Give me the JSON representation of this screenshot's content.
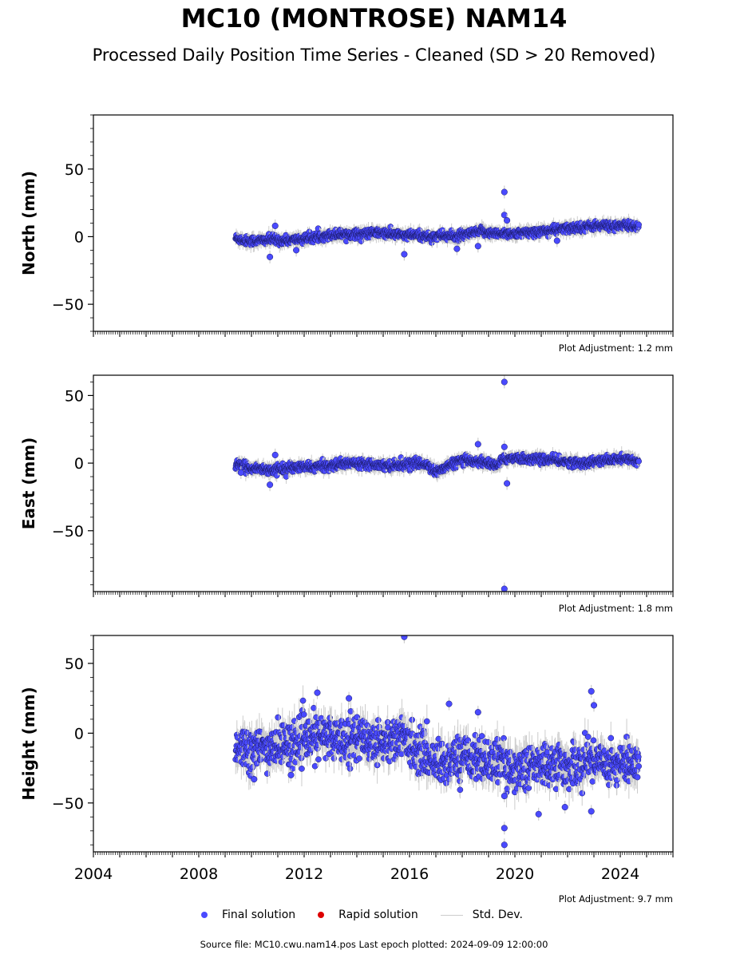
{
  "title": "MC10 (MONTROSE) NAM14",
  "subtitle": "Processed Daily Position Time Series - Cleaned (SD > 20 Removed)",
  "legend": {
    "final": "Final solution",
    "rapid": "Rapid solution",
    "stddev": "Std. Dev."
  },
  "source_text": "Source file: MC10.cwu.nam14.pos  Last epoch plotted: 2024-09-09 12:00:00",
  "colors": {
    "final": "#4a4aff",
    "rapid": "#dd0000",
    "stddev": "#cccccc",
    "edge": "#1a1a66"
  },
  "chart_data": [
    {
      "type": "scatter",
      "ylabel": "North (mm)",
      "adjustment": "Plot Adjustment: 1.2 mm",
      "xlim": [
        2004,
        2026
      ],
      "ylim": [
        -70,
        90
      ],
      "yticks": [
        -50,
        0,
        50
      ],
      "xticks": [
        2004,
        2008,
        2012,
        2016,
        2020,
        2024
      ],
      "series": [
        {
          "x": [
            2009.4,
            2009.8,
            2010.3,
            2010.8,
            2011.3,
            2011.8,
            2012.3,
            2012.8,
            2013.3,
            2013.8,
            2014.3,
            2014.8,
            2015.3,
            2015.8,
            2016.3,
            2016.8,
            2017.3,
            2017.8,
            2018.3,
            2018.8,
            2019.3,
            2019.6,
            2020.0,
            2020.5,
            2021.0,
            2021.5,
            2022.0,
            2022.5,
            2023.0,
            2023.5,
            2024.0,
            2024.5,
            2024.7
          ],
          "y": [
            -1,
            -3,
            -3,
            -2,
            -3,
            -2,
            -1,
            1,
            2,
            2,
            2,
            3,
            2,
            1,
            1,
            0,
            1,
            0,
            2,
            4,
            2,
            3,
            2,
            3,
            4,
            5,
            6,
            7,
            8,
            8,
            8,
            8,
            7
          ]
        }
      ],
      "outliers": {
        "x": [
          2010.7,
          2010.9,
          2011.7,
          2015.8,
          2017.8,
          2018.6,
          2019.6,
          2019.6,
          2019.7,
          2021.6
        ],
        "y": [
          -15,
          8,
          -10,
          -13,
          -9,
          -7,
          33,
          16,
          12,
          -3
        ]
      }
    },
    {
      "type": "scatter",
      "ylabel": "East (mm)",
      "adjustment": "Plot Adjustment: 1.8 mm",
      "xlim": [
        2004,
        2026
      ],
      "ylim": [
        -95,
        65
      ],
      "yticks": [
        -50,
        0,
        50
      ],
      "xticks": [
        2004,
        2008,
        2012,
        2016,
        2020,
        2024
      ],
      "series": [
        {
          "x": [
            2009.4,
            2009.8,
            2010.3,
            2010.8,
            2011.3,
            2011.8,
            2012.3,
            2012.8,
            2013.3,
            2013.8,
            2014.3,
            2014.8,
            2015.3,
            2015.8,
            2016.3,
            2016.8,
            2017.0,
            2017.3,
            2017.8,
            2018.3,
            2018.8,
            2019.3,
            2019.6,
            2020.0,
            2020.5,
            2021.0,
            2021.5,
            2022.0,
            2022.5,
            2023.0,
            2023.5,
            2024.0,
            2024.5,
            2024.7
          ],
          "y": [
            -1,
            -3,
            -4,
            -5,
            -4,
            -3,
            -3,
            -2,
            -1,
            0,
            0,
            -1,
            -2,
            -1,
            0,
            -2,
            -7,
            -4,
            1,
            2,
            1,
            -2,
            3,
            4,
            3,
            3,
            2,
            1,
            0,
            1,
            2,
            3,
            2,
            1
          ]
        }
      ],
      "outliers": {
        "x": [
          2009.6,
          2010.7,
          2010.9,
          2018.6,
          2019.6,
          2019.6,
          2019.7,
          2019.6
        ],
        "y": [
          -7,
          -16,
          6,
          14,
          60,
          12,
          -15,
          -93
        ]
      }
    },
    {
      "type": "scatter",
      "ylabel": "Height (mm)",
      "adjustment": "Plot Adjustment: 9.7 mm",
      "xlim": [
        2004,
        2026
      ],
      "ylim": [
        -85,
        70
      ],
      "yticks": [
        -50,
        0,
        50
      ],
      "xticks": [
        2004,
        2008,
        2012,
        2016,
        2020,
        2024
      ],
      "xticklabels": [
        "2004",
        "2008",
        "2012",
        "2016",
        "2020",
        "2024"
      ],
      "series": [
        {
          "x": [
            2009.4,
            2009.8,
            2010.3,
            2010.8,
            2011.3,
            2011.8,
            2012.3,
            2012.8,
            2013.3,
            2013.8,
            2014.3,
            2014.8,
            2015.3,
            2015.8,
            2016.3,
            2016.8,
            2017.3,
            2017.8,
            2018.3,
            2018.8,
            2019.3,
            2019.6,
            2020.0,
            2020.5,
            2021.0,
            2021.5,
            2022.0,
            2022.5,
            2023.0,
            2023.5,
            2024.0,
            2024.5,
            2024.7
          ],
          "y": [
            -8,
            -10,
            -12,
            -10,
            -8,
            -6,
            -4,
            -2,
            -4,
            -3,
            -4,
            -6,
            -5,
            -3,
            -12,
            -18,
            -22,
            -18,
            -16,
            -20,
            -20,
            -22,
            -26,
            -24,
            -23,
            -22,
            -24,
            -22,
            -18,
            -20,
            -22,
            -24,
            -22
          ]
        }
      ],
      "outliers": {
        "x": [
          2010.1,
          2011.5,
          2012.5,
          2013.7,
          2015.8,
          2017.5,
          2018.6,
          2019.6,
          2019.6,
          2019.6,
          2020.9,
          2021.9,
          2022.9,
          2022.9,
          2023.0
        ],
        "y": [
          -33,
          -30,
          29,
          25,
          69,
          21,
          15,
          -45,
          -68,
          -80,
          -58,
          -53,
          -56,
          30,
          20
        ]
      }
    }
  ]
}
